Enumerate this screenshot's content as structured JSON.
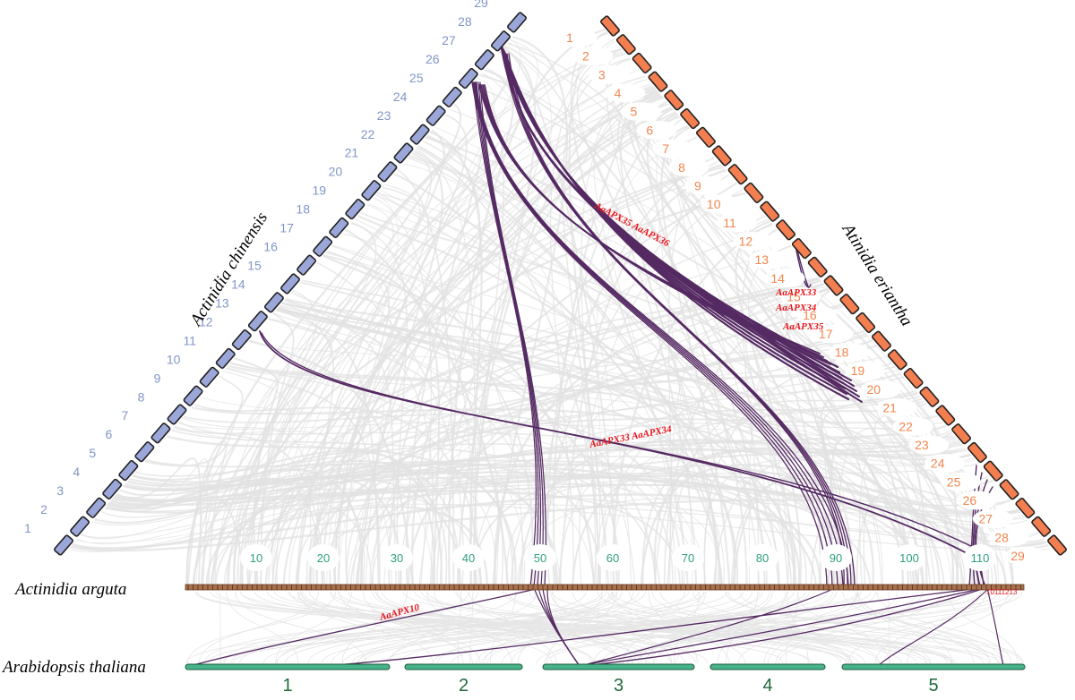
{
  "colors": {
    "chinensis": "#8096c8",
    "chinensis_block": "#9aa7d8",
    "eriantha": "#f1864e",
    "eriantha_block": "#f37e50",
    "arguta": "#ed7a3c",
    "arguta_block": "#a7704e",
    "thaliana": "#2a9b7a",
    "thaliana_block": "#47b38b",
    "thaliana_num": "#1f6b3c",
    "link": "#552a63",
    "background_link": "#e1e1e1",
    "gene_label": "#e8141b",
    "marker_text": "#2ea07f"
  },
  "species": {
    "chinensis": "Actinidia chinensis",
    "eriantha": "Atinidia eriantha",
    "arguta": "Actinidia arguta",
    "thaliana": "Arabidopsis thaliana"
  },
  "chinensis_chromosomes": [
    "1",
    "2",
    "3",
    "4",
    "5",
    "6",
    "7",
    "8",
    "9",
    "10",
    "11",
    "12",
    "13",
    "14",
    "15",
    "16",
    "17",
    "18",
    "19",
    "20",
    "21",
    "22",
    "23",
    "24",
    "25",
    "26",
    "27",
    "28",
    "29"
  ],
  "eriantha_chromosomes": [
    "1",
    "2",
    "3",
    "4",
    "5",
    "6",
    "7",
    "8",
    "9",
    "10",
    "11",
    "12",
    "13",
    "14",
    "15",
    "16",
    "17",
    "18",
    "19",
    "20",
    "21",
    "22",
    "23",
    "24",
    "25",
    "26",
    "27",
    "28",
    "29"
  ],
  "arguta_markers": [
    "10",
    "20",
    "30",
    "40",
    "50",
    "60",
    "70",
    "80",
    "90",
    "100",
    "110"
  ],
  "arguta_small_label": "10111213",
  "thaliana_chromosomes": [
    "1",
    "2",
    "3",
    "4",
    "5"
  ],
  "gene_labels": {
    "g1": "AaAPX35 AaAPX36",
    "g2a": "AaAPX33",
    "g2b": "AaAPX34",
    "g2c": "AaAPX35",
    "g3": "AaAPX33 AaAPX34",
    "g4": "AaAPX10"
  }
}
